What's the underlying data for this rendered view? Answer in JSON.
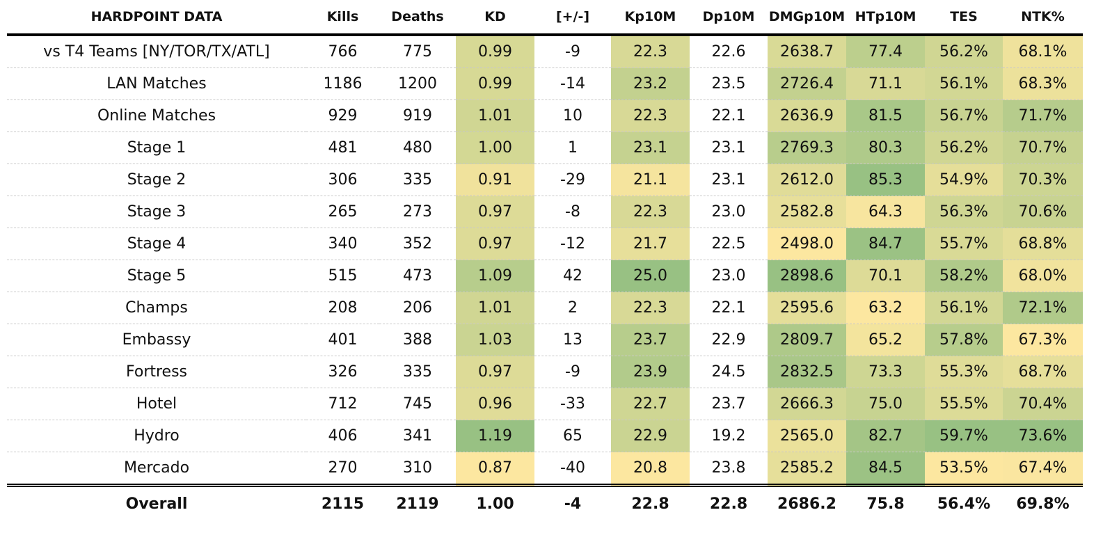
{
  "chart_data": {
    "type": "table",
    "title": "HARDPOINT DATA",
    "columns": [
      "Kills",
      "Deaths",
      "KD",
      "[+/-]",
      "Kp10M",
      "Dp10M",
      "DMGp10M",
      "HTp10M",
      "TES",
      "NTK%"
    ],
    "heat_columns": [
      "KD",
      "Kp10M",
      "DMGp10M",
      "HTp10M",
      "TES",
      "NTK%"
    ],
    "heat_colors": {
      "low": "#fce7a0",
      "high": "#98c183"
    },
    "rows": [
      {
        "label": "vs T4 Teams [NY/TOR/TX/ATL]",
        "values": [
          "766",
          "775",
          "0.99",
          "-9",
          "22.3",
          "22.6",
          "2638.7",
          "77.4",
          "56.2%",
          "68.1%"
        ]
      },
      {
        "label": "LAN Matches",
        "values": [
          "1186",
          "1200",
          "0.99",
          "-14",
          "23.2",
          "23.5",
          "2726.4",
          "71.1",
          "56.1%",
          "68.3%"
        ]
      },
      {
        "label": "Online Matches",
        "values": [
          "929",
          "919",
          "1.01",
          "10",
          "22.3",
          "22.1",
          "2636.9",
          "81.5",
          "56.7%",
          "71.7%"
        ]
      },
      {
        "label": "Stage 1",
        "values": [
          "481",
          "480",
          "1.00",
          "1",
          "23.1",
          "23.1",
          "2769.3",
          "80.3",
          "56.2%",
          "70.7%"
        ]
      },
      {
        "label": "Stage 2",
        "values": [
          "306",
          "335",
          "0.91",
          "-29",
          "21.1",
          "23.1",
          "2612.0",
          "85.3",
          "54.9%",
          "70.3%"
        ]
      },
      {
        "label": "Stage 3",
        "values": [
          "265",
          "273",
          "0.97",
          "-8",
          "22.3",
          "23.0",
          "2582.8",
          "64.3",
          "56.3%",
          "70.6%"
        ]
      },
      {
        "label": "Stage 4",
        "values": [
          "340",
          "352",
          "0.97",
          "-12",
          "21.7",
          "22.5",
          "2498.0",
          "84.7",
          "55.7%",
          "68.8%"
        ]
      },
      {
        "label": "Stage 5",
        "values": [
          "515",
          "473",
          "1.09",
          "42",
          "25.0",
          "23.0",
          "2898.6",
          "70.1",
          "58.2%",
          "68.0%"
        ]
      },
      {
        "label": "Champs",
        "values": [
          "208",
          "206",
          "1.01",
          "2",
          "22.3",
          "22.1",
          "2595.6",
          "63.2",
          "56.1%",
          "72.1%"
        ]
      },
      {
        "label": "Embassy",
        "values": [
          "401",
          "388",
          "1.03",
          "13",
          "23.7",
          "22.9",
          "2809.7",
          "65.2",
          "57.8%",
          "67.3%"
        ]
      },
      {
        "label": "Fortress",
        "values": [
          "326",
          "335",
          "0.97",
          "-9",
          "23.9",
          "24.5",
          "2832.5",
          "73.3",
          "55.3%",
          "68.7%"
        ]
      },
      {
        "label": "Hotel",
        "values": [
          "712",
          "745",
          "0.96",
          "-33",
          "22.7",
          "23.7",
          "2666.3",
          "75.0",
          "55.5%",
          "70.4%"
        ]
      },
      {
        "label": "Hydro",
        "values": [
          "406",
          "341",
          "1.19",
          "65",
          "22.9",
          "19.2",
          "2565.0",
          "82.7",
          "59.7%",
          "73.6%"
        ]
      },
      {
        "label": "Mercado",
        "values": [
          "270",
          "310",
          "0.87",
          "-40",
          "20.8",
          "23.8",
          "2585.2",
          "84.5",
          "53.5%",
          "67.4%"
        ]
      }
    ],
    "total": {
      "label": "Overall",
      "values": [
        "2115",
        "2119",
        "1.00",
        "-4",
        "22.8",
        "22.8",
        "2686.2",
        "75.8",
        "56.4%",
        "69.8%"
      ]
    }
  }
}
